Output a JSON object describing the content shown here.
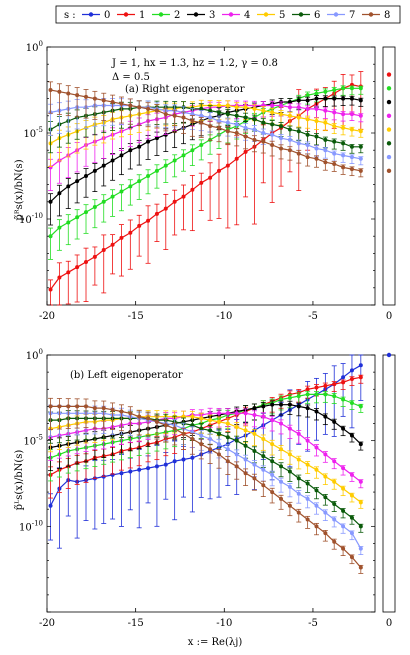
{
  "legend": {
    "title": "s :",
    "entries": [
      "0",
      "1",
      "2",
      "3",
      "4",
      "5",
      "6",
      "7",
      "8"
    ],
    "colors": [
      "#1f2fd8",
      "#ee1111",
      "#22dd22",
      "#000000",
      "#ee22ee",
      "#ffcc00",
      "#0a5a0a",
      "#8899ff",
      "#a0522d"
    ]
  },
  "chart_data": [
    {
      "type": "line",
      "panel_label": "(a) Right eigenoperator",
      "annotation_line1": "J = 1, hx = 1.3, hz = 1.2, γ = 0.8",
      "annotation_line2": "Δ = 0.5",
      "ylabel": "p̃ᴿs(x)/bN(s)",
      "xlabel": "",
      "xlim": [
        -20,
        -1.5
      ],
      "ylim_log10": [
        -15,
        0
      ],
      "y_scale": "log",
      "x_ticks": [
        "-20",
        "-15",
        "-10",
        "-5"
      ],
      "y_ticks": [
        "10^0",
        "10^-5",
        "10^-10"
      ],
      "x": [
        -19.8,
        -19.3,
        -18.8,
        -18.3,
        -17.8,
        -17.3,
        -16.8,
        -16.3,
        -15.8,
        -15.3,
        -14.8,
        -14.3,
        -13.8,
        -13.3,
        -12.8,
        -12.3,
        -11.8,
        -11.3,
        -10.8,
        -10.3,
        -9.8,
        -9.3,
        -8.8,
        -8.3,
        -7.8,
        -7.3,
        -6.8,
        -6.3,
        -5.8,
        -5.3,
        -4.8,
        -4.3,
        -3.8,
        -3.3,
        -2.8,
        -2.3
      ],
      "series": [
        {
          "name": "1",
          "error_bars": true,
          "log10_values": [
            -14.1,
            -13.4,
            -13.1,
            -12.8,
            -12.5,
            -12.2,
            -11.8,
            -11.5,
            -11.1,
            -10.8,
            -10.4,
            -10.1,
            -9.7,
            -9.4,
            -9.0,
            -8.7,
            -8.3,
            -7.9,
            -7.6,
            -7.2,
            -6.9,
            -6.5,
            -6.1,
            -5.8,
            -5.4,
            -5.0,
            -4.7,
            -4.3,
            -4.0,
            -3.6,
            -3.3,
            -3.0,
            -2.7,
            -2.4,
            -2.2,
            -2.3
          ]
        },
        {
          "name": "2",
          "error_bars": true,
          "log10_values": [
            -11.0,
            -10.5,
            -10.2,
            -9.9,
            -9.6,
            -9.3,
            -9.0,
            -8.7,
            -8.4,
            -8.1,
            -7.8,
            -7.5,
            -7.2,
            -6.9,
            -6.6,
            -6.3,
            -6.0,
            -5.7,
            -5.4,
            -5.1,
            -4.8,
            -4.6,
            -4.3,
            -4.1,
            -3.8,
            -3.6,
            -3.4,
            -3.2,
            -3.0,
            -2.8,
            -2.7,
            -2.6,
            -2.5,
            -2.4,
            -2.4,
            -2.4
          ]
        },
        {
          "name": "3",
          "error_bars": true,
          "log10_values": [
            -9.0,
            -8.5,
            -8.1,
            -7.8,
            -7.5,
            -7.2,
            -6.9,
            -6.6,
            -6.3,
            -6.0,
            -5.8,
            -5.5,
            -5.3,
            -5.1,
            -4.9,
            -4.7,
            -4.5,
            -4.3,
            -4.1,
            -4.0,
            -3.8,
            -3.7,
            -3.6,
            -3.5,
            -3.4,
            -3.3,
            -3.2,
            -3.2,
            -3.1,
            -3.1,
            -3.0,
            -3.0,
            -3.0,
            -3.0,
            -3.0,
            -3.1
          ]
        },
        {
          "name": "4",
          "error_bars": true,
          "log10_values": [
            -7.0,
            -6.6,
            -6.3,
            -6.0,
            -5.7,
            -5.5,
            -5.3,
            -5.1,
            -4.9,
            -4.7,
            -4.5,
            -4.3,
            -4.2,
            -4.1,
            -3.9,
            -3.8,
            -3.7,
            -3.6,
            -3.5,
            -3.5,
            -3.4,
            -3.4,
            -3.4,
            -3.4,
            -3.4,
            -3.4,
            -3.4,
            -3.5,
            -3.5,
            -3.6,
            -3.6,
            -3.7,
            -3.8,
            -3.9,
            -3.9,
            -4.0
          ]
        },
        {
          "name": "5",
          "error_bars": true,
          "log10_values": [
            -5.6,
            -5.3,
            -5.1,
            -4.9,
            -4.7,
            -4.5,
            -4.4,
            -4.2,
            -4.1,
            -4.0,
            -3.9,
            -3.8,
            -3.7,
            -3.6,
            -3.6,
            -3.5,
            -3.5,
            -3.4,
            -3.4,
            -3.4,
            -3.4,
            -3.5,
            -3.5,
            -3.6,
            -3.7,
            -3.8,
            -3.9,
            -4.0,
            -4.1,
            -4.2,
            -4.3,
            -4.4,
            -4.6,
            -4.7,
            -4.8,
            -4.9
          ]
        },
        {
          "name": "6",
          "error_bars": true,
          "log10_values": [
            -4.8,
            -4.5,
            -4.3,
            -4.1,
            -4.0,
            -3.9,
            -3.8,
            -3.7,
            -3.6,
            -3.6,
            -3.5,
            -3.5,
            -3.5,
            -3.5,
            -3.5,
            -3.5,
            -3.6,
            -3.6,
            -3.7,
            -3.8,
            -3.9,
            -4.0,
            -4.1,
            -4.2,
            -4.4,
            -4.5,
            -4.6,
            -4.8,
            -4.9,
            -5.1,
            -5.2,
            -5.4,
            -5.5,
            -5.6,
            -5.8,
            -5.8
          ]
        },
        {
          "name": "7",
          "error_bars": true,
          "log10_values": [
            -3.8,
            -3.7,
            -3.6,
            -3.5,
            -3.5,
            -3.4,
            -3.4,
            -3.4,
            -3.4,
            -3.4,
            -3.5,
            -3.5,
            -3.6,
            -3.7,
            -3.7,
            -3.8,
            -3.9,
            -4.0,
            -4.1,
            -4.3,
            -4.4,
            -4.5,
            -4.7,
            -4.8,
            -5.0,
            -5.1,
            -5.3,
            -5.4,
            -5.6,
            -5.7,
            -5.9,
            -6.0,
            -6.2,
            -6.3,
            -6.4,
            -6.5
          ]
        },
        {
          "name": "8",
          "error_bars": true,
          "log10_values": [
            -2.5,
            -2.6,
            -2.7,
            -2.8,
            -2.9,
            -3.0,
            -3.1,
            -3.2,
            -3.3,
            -3.4,
            -3.5,
            -3.6,
            -3.7,
            -3.9,
            -4.0,
            -4.1,
            -4.3,
            -4.4,
            -4.6,
            -4.7,
            -4.9,
            -5.0,
            -5.2,
            -5.4,
            -5.5,
            -5.7,
            -5.9,
            -6.0,
            -6.2,
            -6.4,
            -6.5,
            -6.7,
            -6.8,
            -7.0,
            -7.1,
            -7.2
          ]
        }
      ],
      "x0_points_log10": [
        {
          "series": "1",
          "value": -1.6
        },
        {
          "series": "2",
          "value": -2.4
        },
        {
          "series": "3",
          "value": -3.2
        },
        {
          "series": "4",
          "value": -4.0
        },
        {
          "series": "5",
          "value": -4.8
        },
        {
          "series": "6",
          "value": -5.6
        },
        {
          "series": "7",
          "value": -6.4
        },
        {
          "series": "8",
          "value": -7.2
        }
      ]
    },
    {
      "type": "line",
      "panel_label": "(b) Left eigenoperator",
      "ylabel": "p̃ᴸs(x)/bN(s)",
      "xlabel": "x := Re(λj)",
      "xlim": [
        -20,
        -1.5
      ],
      "ylim_log10": [
        -15,
        0
      ],
      "y_scale": "log",
      "x_ticks": [
        "-20",
        "-15",
        "-10",
        "-5"
      ],
      "x0_tick": "0",
      "y_ticks": [
        "10^0",
        "10^-5",
        "10^-10"
      ],
      "x": [
        -19.8,
        -19.3,
        -18.8,
        -18.3,
        -17.8,
        -17.3,
        -16.8,
        -16.3,
        -15.8,
        -15.3,
        -14.8,
        -14.3,
        -13.8,
        -13.3,
        -12.8,
        -12.3,
        -11.8,
        -11.3,
        -10.8,
        -10.3,
        -9.8,
        -9.3,
        -8.8,
        -8.3,
        -7.8,
        -7.3,
        -6.8,
        -6.3,
        -5.8,
        -5.3,
        -4.8,
        -4.3,
        -3.8,
        -3.3,
        -2.8,
        -2.3
      ],
      "series": [
        {
          "name": "0",
          "error_bars": true,
          "log10_values": [
            -8.8,
            -7.8,
            -7.3,
            -7.4,
            -7.3,
            -7.2,
            -7.1,
            -7.0,
            -6.9,
            -6.8,
            -6.7,
            -6.6,
            -6.5,
            -6.4,
            -6.2,
            -6.1,
            -6.0,
            -5.8,
            -5.6,
            -5.4,
            -5.2,
            -4.9,
            -4.7,
            -4.4,
            -4.1,
            -3.8,
            -3.5,
            -3.2,
            -2.9,
            -2.6,
            -2.3,
            -2.0,
            -1.7,
            -1.3,
            -0.9,
            -0.6
          ]
        },
        {
          "name": "1",
          "error_bars": true,
          "log10_values": [
            -7.0,
            -6.7,
            -6.5,
            -6.3,
            -6.2,
            -6.0,
            -5.9,
            -5.8,
            -5.6,
            -5.5,
            -5.4,
            -5.2,
            -5.1,
            -4.9,
            -4.8,
            -4.6,
            -4.5,
            -4.3,
            -4.1,
            -3.9,
            -3.7,
            -3.5,
            -3.3,
            -3.1,
            -2.9,
            -2.7,
            -2.5,
            -2.3,
            -2.2,
            -2.0,
            -1.9,
            -1.8,
            -1.7,
            -1.6,
            -1.4,
            -1.3
          ]
        },
        {
          "name": "2",
          "error_bars": true,
          "log10_values": [
            -6.0,
            -5.8,
            -5.6,
            -5.5,
            -5.4,
            -5.3,
            -5.2,
            -5.1,
            -5.0,
            -4.9,
            -4.8,
            -4.7,
            -4.6,
            -4.5,
            -4.4,
            -4.3,
            -4.1,
            -4.0,
            -3.8,
            -3.7,
            -3.5,
            -3.4,
            -3.2,
            -3.1,
            -2.9,
            -2.8,
            -2.6,
            -2.5,
            -2.4,
            -2.3,
            -2.3,
            -2.3,
            -2.4,
            -2.6,
            -2.8,
            -3.0
          ]
        },
        {
          "name": "3",
          "error_bars": true,
          "log10_values": [
            -5.4,
            -5.3,
            -5.2,
            -5.1,
            -5.0,
            -4.9,
            -4.8,
            -4.7,
            -4.6,
            -4.5,
            -4.4,
            -4.3,
            -4.2,
            -4.1,
            -4.0,
            -3.9,
            -3.8,
            -3.7,
            -3.6,
            -3.5,
            -3.4,
            -3.3,
            -3.2,
            -3.1,
            -3.0,
            -2.9,
            -2.9,
            -2.9,
            -3.0,
            -3.1,
            -3.3,
            -3.6,
            -3.9,
            -4.3,
            -4.7,
            -5.2
          ]
        },
        {
          "name": "4",
          "error_bars": true,
          "log10_values": [
            -4.8,
            -4.7,
            -4.6,
            -4.5,
            -4.4,
            -4.3,
            -4.3,
            -4.2,
            -4.1,
            -4.0,
            -4.0,
            -3.9,
            -3.8,
            -3.7,
            -3.7,
            -3.6,
            -3.5,
            -3.5,
            -3.4,
            -3.4,
            -3.4,
            -3.4,
            -3.4,
            -3.5,
            -3.6,
            -3.8,
            -4.0,
            -4.3,
            -4.6,
            -5.0,
            -5.4,
            -5.8,
            -6.2,
            -6.6,
            -7.0,
            -7.4
          ]
        },
        {
          "name": "5",
          "error_bars": true,
          "log10_values": [
            -4.3,
            -4.2,
            -4.1,
            -4.0,
            -3.9,
            -3.9,
            -3.8,
            -3.8,
            -3.7,
            -3.7,
            -3.6,
            -3.6,
            -3.6,
            -3.6,
            -3.6,
            -3.6,
            -3.6,
            -3.7,
            -3.8,
            -3.9,
            -4.0,
            -4.2,
            -4.4,
            -4.6,
            -4.9,
            -5.2,
            -5.5,
            -5.8,
            -6.1,
            -6.4,
            -6.7,
            -7.1,
            -7.4,
            -7.8,
            -8.2,
            -8.6
          ]
        },
        {
          "name": "6",
          "error_bars": true,
          "log10_values": [
            -3.8,
            -3.8,
            -3.7,
            -3.7,
            -3.7,
            -3.7,
            -3.7,
            -3.7,
            -3.7,
            -3.7,
            -3.7,
            -3.7,
            -3.8,
            -3.8,
            -3.9,
            -4.0,
            -4.1,
            -4.3,
            -4.4,
            -4.6,
            -4.8,
            -5.0,
            -5.3,
            -5.6,
            -5.9,
            -6.2,
            -6.5,
            -6.8,
            -7.2,
            -7.5,
            -7.9,
            -8.3,
            -8.7,
            -9.1,
            -9.5,
            -10.0
          ]
        },
        {
          "name": "7",
          "error_bars": true,
          "log10_values": [
            -3.4,
            -3.4,
            -3.4,
            -3.4,
            -3.4,
            -3.4,
            -3.4,
            -3.5,
            -3.5,
            -3.6,
            -3.7,
            -3.8,
            -3.9,
            -4.0,
            -4.1,
            -4.3,
            -4.5,
            -4.7,
            -4.9,
            -5.2,
            -5.5,
            -5.8,
            -6.1,
            -6.4,
            -6.7,
            -7.0,
            -7.4,
            -7.7,
            -8.1,
            -8.4,
            -8.8,
            -9.2,
            -9.6,
            -10.0,
            -10.4,
            -11.3
          ]
        },
        {
          "name": "8",
          "error_bars": true,
          "log10_values": [
            -3.0,
            -3.0,
            -3.0,
            -3.0,
            -3.0,
            -3.1,
            -3.1,
            -3.2,
            -3.3,
            -3.4,
            -3.6,
            -3.7,
            -3.9,
            -4.1,
            -4.3,
            -4.6,
            -4.9,
            -5.2,
            -5.5,
            -5.8,
            -6.2,
            -6.5,
            -6.9,
            -7.2,
            -7.6,
            -8.0,
            -8.4,
            -8.8,
            -9.2,
            -9.6,
            -10.0,
            -10.4,
            -10.9,
            -11.3,
            -11.8,
            -12.4
          ]
        }
      ],
      "x0_points_log10": [
        {
          "series": "0",
          "value": 0.0
        }
      ]
    }
  ]
}
